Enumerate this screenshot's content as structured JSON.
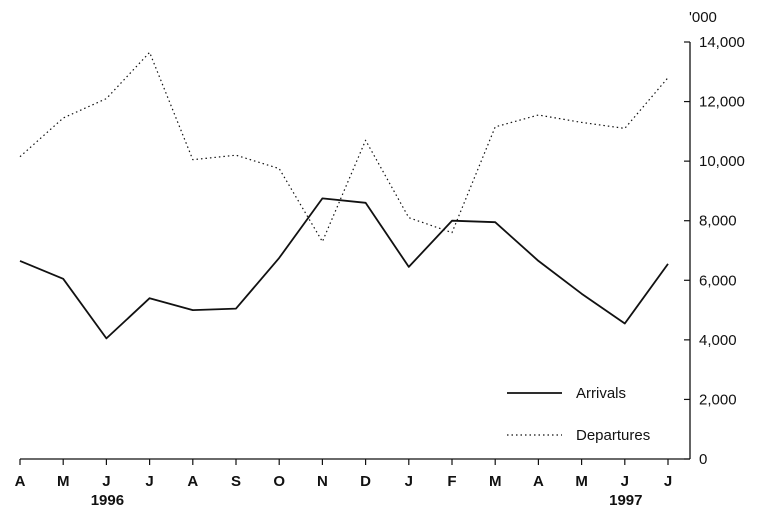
{
  "chart_data": {
    "type": "line",
    "title": "",
    "xlabel": "",
    "ylabel": "",
    "y_unit_label": "'000",
    "categories": [
      "A",
      "M",
      "J",
      "J",
      "A",
      "S",
      "O",
      "N",
      "D",
      "J",
      "F",
      "M",
      "A",
      "M",
      "J",
      "J"
    ],
    "year_labels": [
      {
        "text": "1996",
        "category_index": 2
      },
      {
        "text": "1997",
        "category_index": 14
      }
    ],
    "y_ticks": [
      0,
      2000,
      4000,
      6000,
      8000,
      10000,
      12000,
      14000
    ],
    "y_tick_labels": [
      "0",
      "2,000",
      "4,000",
      "6,000",
      "8,000",
      "10,000",
      "12,000",
      "14,000"
    ],
    "ylim": [
      0,
      14000
    ],
    "y_axis_side": "right",
    "grid": false,
    "legend_position": "bottom-right",
    "series": [
      {
        "name": "Arrivals",
        "style": "solid",
        "values": [
          6650,
          6050,
          4050,
          5400,
          5000,
          5050,
          6750,
          8750,
          8600,
          6450,
          8000,
          7950,
          6650,
          5550,
          4550,
          6550
        ]
      },
      {
        "name": "Departures",
        "style": "dotted",
        "values": [
          10150,
          11450,
          12100,
          13650,
          10050,
          10200,
          9750,
          7300,
          10700,
          8100,
          7600,
          11150,
          11550,
          11300,
          11100,
          12800
        ]
      }
    ]
  },
  "colors": {
    "line": "#111111",
    "background": "#ffffff"
  }
}
